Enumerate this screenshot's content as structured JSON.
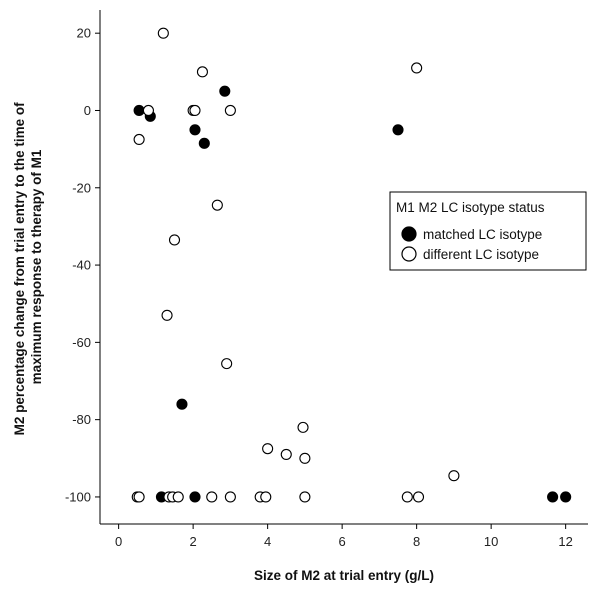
{
  "chart_data": {
    "type": "scatter",
    "xlabel": "Size of M2 at trial entry (g/L)",
    "ylabel": "M2 percentage change from trial entry to the time of maximum response to therapy of M1",
    "ylabel_lines": [
      "M2 percentage change from trial entry to the time of",
      "maximum response to therapy of M1"
    ],
    "xlim": [
      -0.5,
      12.6
    ],
    "ylim": [
      -107,
      26
    ],
    "xticks": [
      0,
      2,
      4,
      6,
      8,
      10,
      12
    ],
    "yticks": [
      -100,
      -80,
      -60,
      -40,
      -20,
      0,
      20
    ],
    "grid": false,
    "legend": {
      "title": "M1 M2 LC isotype status",
      "placement": "right",
      "entries": [
        "matched LC isotype",
        "different LC isotype"
      ]
    },
    "series": [
      {
        "name": "matched LC isotype",
        "marker": "filled-circle",
        "color": "#000000",
        "points": [
          [
            0.55,
            0
          ],
          [
            0.85,
            -1.5
          ],
          [
            2.05,
            -5
          ],
          [
            2.3,
            -8.5
          ],
          [
            2.85,
            5
          ],
          [
            7.5,
            -5
          ],
          [
            1.7,
            -76
          ],
          [
            1.15,
            -100
          ],
          [
            2.05,
            -100
          ],
          [
            11.65,
            -100
          ],
          [
            12.0,
            -100
          ]
        ]
      },
      {
        "name": "different LC isotype",
        "marker": "open-circle",
        "color": "#000000",
        "points": [
          [
            1.2,
            20
          ],
          [
            2.25,
            10
          ],
          [
            8.0,
            11
          ],
          [
            0.8,
            0
          ],
          [
            2.0,
            0
          ],
          [
            2.05,
            0
          ],
          [
            3.0,
            0
          ],
          [
            0.55,
            -7.5
          ],
          [
            2.65,
            -24.5
          ],
          [
            1.5,
            -33.5
          ],
          [
            1.3,
            -53
          ],
          [
            2.9,
            -65.5
          ],
          [
            4.0,
            -87.5
          ],
          [
            4.5,
            -89
          ],
          [
            4.95,
            -82
          ],
          [
            5.0,
            -90
          ],
          [
            9.0,
            -94.5
          ],
          [
            0.5,
            -100
          ],
          [
            0.55,
            -100
          ],
          [
            1.35,
            -100
          ],
          [
            1.45,
            -100
          ],
          [
            1.6,
            -100
          ],
          [
            2.5,
            -100
          ],
          [
            3.0,
            -100
          ],
          [
            3.8,
            -100
          ],
          [
            3.95,
            -100
          ],
          [
            5.0,
            -100
          ],
          [
            7.75,
            -100
          ],
          [
            8.05,
            -100
          ]
        ]
      }
    ]
  }
}
